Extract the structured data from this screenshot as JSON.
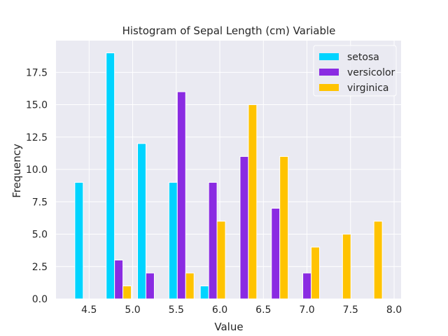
{
  "chart_data": {
    "type": "bar",
    "title": "Histogram of Sepal Length (cm)  Variable",
    "xlabel": "Value",
    "ylabel": "Frequency",
    "xlim": [
      4.12,
      8.08
    ],
    "ylim": [
      0,
      19.95
    ],
    "xticks": [
      4.5,
      5.0,
      5.5,
      6.0,
      6.5,
      7.0,
      7.5,
      8.0
    ],
    "xtick_labels": [
      "4.5",
      "5.0",
      "5.5",
      "6.0",
      "6.5",
      "7.0",
      "7.5",
      "8.0"
    ],
    "yticks": [
      0,
      2.5,
      5,
      7.5,
      10,
      12.5,
      15,
      17.5
    ],
    "ytick_labels": [
      "0.0",
      "2.5",
      "5.0",
      "7.5",
      "10.0",
      "12.5",
      "15.0",
      "17.5"
    ],
    "bin_edges": [
      4.3,
      4.66,
      5.02,
      5.38,
      5.74,
      6.1,
      6.46,
      6.82,
      7.18,
      7.54,
      7.9
    ],
    "grid": true,
    "legend_position": "top-right",
    "series": [
      {
        "name": "setosa",
        "color": "#00d4ff",
        "values": [
          9,
          19,
          12,
          9,
          1,
          0,
          0,
          0,
          0,
          0
        ]
      },
      {
        "name": "versicolor",
        "color": "#8a2be2",
        "values": [
          0,
          3,
          2,
          16,
          9,
          11,
          7,
          2,
          0,
          0
        ]
      },
      {
        "name": "virginica",
        "color": "#ffc300",
        "values": [
          0,
          1,
          0,
          2,
          6,
          15,
          11,
          4,
          5,
          6
        ]
      }
    ]
  }
}
